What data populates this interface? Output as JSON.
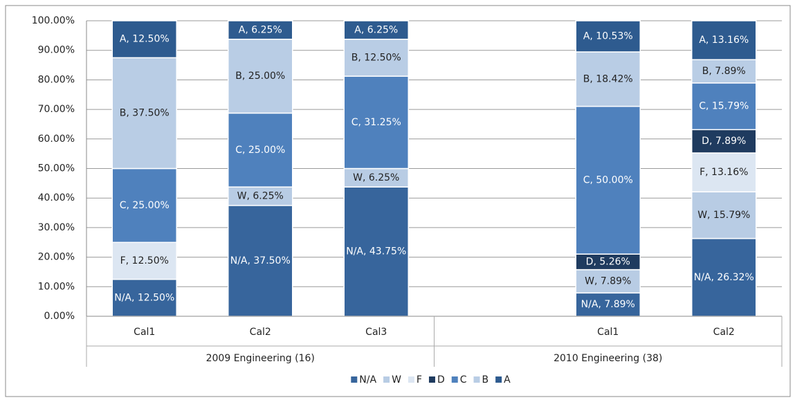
{
  "chart_data": {
    "type": "stacked_bar",
    "ylim": [
      0,
      100
    ],
    "yticks": [
      {
        "value": 0,
        "label": "0.00%"
      },
      {
        "value": 10,
        "label": "10.00%"
      },
      {
        "value": 20,
        "label": "20.00%"
      },
      {
        "value": 30,
        "label": "30.00%"
      },
      {
        "value": 40,
        "label": "40.00%"
      },
      {
        "value": 50,
        "label": "50.00%"
      },
      {
        "value": 60,
        "label": "60.00%"
      },
      {
        "value": 70,
        "label": "70.00%"
      },
      {
        "value": 80,
        "label": "80.00%"
      },
      {
        "value": 90,
        "label": "90.00%"
      },
      {
        "value": 100,
        "label": "100.00%"
      }
    ],
    "grid": true,
    "legend": "bottom",
    "groups": [
      {
        "label": "2009 Engineering (16)",
        "categories": [
          "Cal1",
          "Cal2",
          "Cal3"
        ]
      },
      {
        "label": "2010 Engineering (38)",
        "categories": [
          null,
          "Cal1",
          "Cal2"
        ]
      }
    ],
    "series": [
      {
        "name": "N/A",
        "color": "#37659c",
        "values": [
          12.5,
          37.5,
          43.75,
          null,
          7.89,
          26.32
        ],
        "value_labels": [
          "N/A, 12.50%",
          "N/A, 37.50%",
          "N/A, 43.75%",
          null,
          "N/A, 7.89%",
          "N/A, 26.32%"
        ]
      },
      {
        "name": "W",
        "color": "#b8cce4",
        "values": [
          null,
          6.25,
          6.25,
          null,
          7.89,
          15.79
        ],
        "value_labels": [
          null,
          "W, 6.25%",
          "W, 6.25%",
          null,
          "W, 7.89%",
          "W, 15.79%"
        ]
      },
      {
        "name": "F",
        "color": "#dce6f2",
        "values": [
          12.5,
          null,
          null,
          null,
          null,
          13.16
        ],
        "value_labels": [
          "F, 12.50%",
          null,
          null,
          null,
          null,
          "F, 13.16%"
        ]
      },
      {
        "name": "D",
        "color": "#1f3b5f",
        "values": [
          null,
          null,
          null,
          null,
          5.26,
          7.89
        ],
        "value_labels": [
          null,
          null,
          null,
          null,
          "D, 5.26%",
          "D, 7.89%"
        ]
      },
      {
        "name": "C",
        "color": "#4f81bd",
        "values": [
          25,
          25,
          31.25,
          null,
          50,
          15.79
        ],
        "value_labels": [
          "C, 25.00%",
          "C, 25.00%",
          "C, 31.25%",
          null,
          "C, 50.00%",
          "C, 15.79%"
        ]
      },
      {
        "name": "B",
        "color": "#b9cde5",
        "values": [
          37.5,
          25,
          12.5,
          null,
          18.42,
          7.89
        ],
        "value_labels": [
          "B, 37.50%",
          "B, 25.00%",
          "B, 12.50%",
          null,
          "B, 18.42%",
          "B, 7.89%"
        ]
      },
      {
        "name": "A",
        "color": "#2e5b8f",
        "values": [
          12.5,
          6.25,
          6.25,
          null,
          10.53,
          13.16
        ],
        "value_labels": [
          "A, 12.50%",
          "A, 6.25%",
          "A, 6.25%",
          null,
          "A, 10.53%",
          "A, 13.16%"
        ]
      }
    ]
  }
}
